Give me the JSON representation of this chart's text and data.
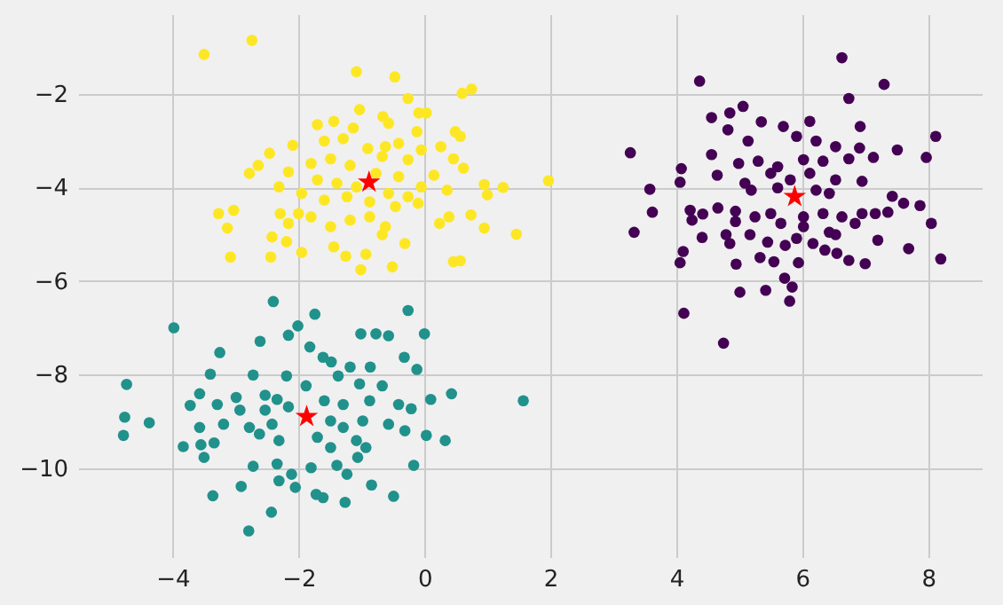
{
  "chart_data": {
    "type": "scatter",
    "xlim": [
      -5.5,
      8.85
    ],
    "ylim": [
      -11.9,
      -0.3
    ],
    "xticks": [
      -4,
      -2,
      0,
      2,
      4,
      6,
      8
    ],
    "yticks": [
      -10,
      -8,
      -6,
      -4,
      -2
    ],
    "grid": true,
    "series": [
      {
        "color": "#fde725",
        "marker": "circle",
        "x": [
          -3.5,
          -2.74,
          -1.08,
          -0.47,
          -0.26,
          0.6,
          0.75,
          -1.03,
          -0.09,
          0.03,
          -0.66,
          -1.7,
          -1.44,
          -1.13,
          -0.57,
          0.49,
          0.57,
          -0.12,
          -1.59,
          -1.29,
          -0.9,
          -0.62,
          -0.41,
          -2.09,
          -2.46,
          -2.64,
          -2.78,
          -2.31,
          -2.16,
          -1.8,
          -1.49,
          -1.18,
          -0.67,
          -0.26,
          -0.05,
          0.26,
          0.46,
          0.62,
          0.15,
          -0.05,
          0.36,
          0.95,
          1.25,
          1.0,
          1.97,
          -1.7,
          -1.39,
          -1.95,
          -1.59,
          -1.23,
          -0.57,
          -0.26,
          -0.1,
          -3.27,
          -3.03,
          -3.13,
          -2.29,
          -2.16,
          -2.0,
          -1.8,
          -2.42,
          -2.19,
          -3.08,
          -2.44,
          -1.95,
          -1.44,
          -1.25,
          -1.01,
          -0.93,
          -0.51,
          -0.67,
          -0.31,
          -1.49,
          -1.18,
          -0.87,
          -0.62,
          0.24,
          0.39,
          0.74,
          0.95,
          1.46,
          0.46,
          0.57,
          -0.87,
          -0.46,
          -0.77,
          -0.41,
          -1.08
        ],
        "values": [
          -1.16,
          -0.86,
          -1.53,
          -1.64,
          -2.1,
          -1.99,
          -1.9,
          -2.34,
          -2.41,
          -2.41,
          -2.49,
          -2.66,
          -2.59,
          -2.73,
          -2.63,
          -2.81,
          -2.91,
          -2.81,
          -3.01,
          -2.96,
          -3.17,
          -3.13,
          -3.06,
          -3.1,
          -3.27,
          -3.53,
          -3.7,
          -3.99,
          -3.67,
          -3.49,
          -3.39,
          -3.53,
          -3.34,
          -3.41,
          -3.2,
          -3.13,
          -3.39,
          -3.59,
          -3.74,
          -3.99,
          -4.06,
          -3.94,
          -4.0,
          -4.16,
          -3.86,
          -3.84,
          -3.91,
          -4.13,
          -4.27,
          -4.2,
          -4.13,
          -4.2,
          -4.34,
          -4.56,
          -4.49,
          -4.87,
          -4.56,
          -4.77,
          -4.56,
          -4.63,
          -5.06,
          -5.16,
          -5.49,
          -5.49,
          -5.39,
          -5.27,
          -5.47,
          -5.76,
          -5.43,
          -5.7,
          -5.01,
          -5.2,
          -4.84,
          -4.7,
          -4.63,
          -4.84,
          -4.77,
          -4.63,
          -4.59,
          -4.87,
          -5.0,
          -5.59,
          -5.57,
          -4.31,
          -4.41,
          -3.7,
          -3.77,
          -3.99
        ]
      },
      {
        "color": "#440154",
        "marker": "circle",
        "x": [
          6.63,
          4.37,
          7.3,
          6.74,
          5.06,
          4.56,
          4.85,
          5.35,
          6.12,
          6.92,
          8.12,
          4.82,
          5.14,
          5.7,
          5.91,
          6.22,
          6.53,
          6.91,
          7.51,
          3.27,
          4.56,
          4.99,
          5.3,
          5.61,
          6.02,
          6.33,
          6.74,
          7.13,
          7.97,
          4.08,
          4.65,
          4.06,
          5.09,
          5.5,
          5.81,
          6.12,
          6.53,
          6.95,
          3.58,
          5.19,
          5.61,
          6.22,
          6.43,
          7.43,
          7.61,
          7.87,
          3.62,
          4.22,
          4.42,
          4.66,
          4.94,
          5.25,
          5.5,
          6.02,
          6.33,
          6.63,
          6.95,
          7.16,
          7.36,
          4.25,
          4.94,
          5.66,
          6.02,
          6.43,
          6.84,
          8.05,
          3.33,
          4.41,
          4.79,
          5.17,
          5.45,
          5.91,
          6.17,
          6.53,
          7.2,
          4.11,
          4.85,
          5.73,
          6.36,
          6.55,
          7.69,
          8.2,
          4.06,
          4.95,
          5.33,
          5.55,
          5.94,
          6.74,
          7.0,
          5.72,
          5.84,
          5.01,
          5.42,
          5.8,
          4.12,
          4.75
        ],
        "values": [
          -1.23,
          -1.73,
          -1.8,
          -2.1,
          -2.27,
          -2.51,
          -2.41,
          -2.6,
          -2.59,
          -2.7,
          -2.91,
          -2.77,
          -3.01,
          -2.7,
          -2.91,
          -3.01,
          -3.13,
          -3.16,
          -3.2,
          -3.26,
          -3.3,
          -3.49,
          -3.44,
          -3.56,
          -3.41,
          -3.44,
          -3.39,
          -3.36,
          -3.36,
          -3.6,
          -3.74,
          -3.89,
          -3.91,
          -3.7,
          -3.84,
          -3.7,
          -3.84,
          -3.87,
          -4.04,
          -4.06,
          -4.01,
          -4.06,
          -4.13,
          -4.19,
          -4.34,
          -4.39,
          -4.53,
          -4.49,
          -4.57,
          -4.44,
          -4.51,
          -4.63,
          -4.56,
          -4.63,
          -4.56,
          -4.63,
          -4.56,
          -4.56,
          -4.53,
          -4.7,
          -4.73,
          -4.77,
          -4.84,
          -4.96,
          -4.77,
          -4.77,
          -4.96,
          -5.07,
          -5.01,
          -5.01,
          -5.17,
          -5.09,
          -5.2,
          -5.01,
          -5.13,
          -5.37,
          -5.2,
          -5.24,
          -5.34,
          -5.41,
          -5.31,
          -5.53,
          -5.61,
          -5.64,
          -5.5,
          -5.59,
          -5.61,
          -5.56,
          -5.63,
          -5.94,
          -6.13,
          -6.24,
          -6.2,
          -6.43,
          -6.69,
          -7.33
        ]
      },
      {
        "color": "#21918c",
        "marker": "circle",
        "x": [
          -2.4,
          -0.26,
          -3.98,
          -1.74,
          -2.01,
          -2.61,
          -2.16,
          -1.01,
          -0.77,
          -0.57,
          0.0,
          -3.25,
          -1.82,
          -1.61,
          -1.48,
          -1.18,
          -0.86,
          -0.32,
          -0.12,
          -3.4,
          -2.72,
          -2.19,
          -1.88,
          -1.37,
          -1.03,
          -0.67,
          -4.73,
          -3.57,
          -2.99,
          -2.53,
          -2.34,
          0.43,
          1.57,
          -3.72,
          -3.29,
          -2.93,
          -2.53,
          -2.16,
          -1.59,
          -1.29,
          -0.87,
          -0.41,
          -0.21,
          0.1,
          -4.76,
          -4.37,
          -3.57,
          -3.19,
          -2.78,
          -2.42,
          -1.49,
          -1.29,
          -0.98,
          -0.57,
          -0.31,
          -4.78,
          -3.83,
          -3.55,
          -3.34,
          -2.62,
          -2.31,
          -1.7,
          -1.49,
          -1.08,
          -0.93,
          0.03,
          0.33,
          -3.5,
          -2.72,
          -2.34,
          -2.11,
          -1.8,
          -1.39,
          -1.23,
          -1.06,
          -0.17,
          -2.91,
          -2.31,
          -2.05,
          -1.72,
          -1.61,
          -0.84,
          -0.49,
          -3.36,
          -1.26,
          -2.43,
          -2.79
        ],
        "values": [
          -6.44,
          -6.63,
          -7.0,
          -6.71,
          -6.96,
          -7.29,
          -7.16,
          -7.13,
          -7.13,
          -7.17,
          -7.13,
          -7.53,
          -7.41,
          -7.63,
          -7.73,
          -7.84,
          -7.84,
          -7.63,
          -7.89,
          -7.99,
          -8.01,
          -8.03,
          -8.24,
          -8.03,
          -8.2,
          -8.24,
          -8.21,
          -8.41,
          -8.49,
          -8.44,
          -8.53,
          -8.41,
          -8.56,
          -8.66,
          -8.64,
          -8.76,
          -8.76,
          -8.69,
          -8.56,
          -8.64,
          -8.56,
          -8.64,
          -8.73,
          -8.53,
          -8.91,
          -9.03,
          -9.13,
          -9.06,
          -9.13,
          -9.06,
          -8.99,
          -9.13,
          -8.99,
          -9.06,
          -9.2,
          -9.3,
          -9.54,
          -9.5,
          -9.46,
          -9.27,
          -9.41,
          -9.34,
          -9.56,
          -9.41,
          -9.56,
          -9.3,
          -9.41,
          -9.77,
          -9.96,
          -9.91,
          -10.13,
          -9.99,
          -9.94,
          -10.13,
          -9.77,
          -9.94,
          -10.39,
          -10.27,
          -10.41,
          -10.56,
          -10.63,
          -10.36,
          -10.6,
          -10.59,
          -10.73,
          -10.94,
          -11.34
        ]
      },
      {
        "color": "#ff0000",
        "marker": "star",
        "x": [
          -0.88,
          5.88,
          -1.87
        ],
        "values": [
          -3.89,
          -4.2,
          -8.9
        ]
      }
    ]
  }
}
